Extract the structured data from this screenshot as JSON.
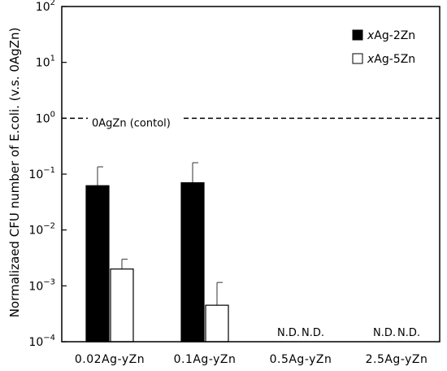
{
  "chart_data": {
    "type": "bar",
    "y_scale": "log",
    "ylim": [
      0.0001,
      100
    ],
    "yticks": [
      {
        "value": 100,
        "base": "10",
        "exp": "2"
      },
      {
        "value": 10,
        "base": "10",
        "exp": "1"
      },
      {
        "value": 1,
        "base": "10",
        "exp": "0"
      },
      {
        "value": 0.1,
        "base": "10",
        "exp": "−1"
      },
      {
        "value": 0.01,
        "base": "10",
        "exp": "−2"
      },
      {
        "value": 0.001,
        "base": "10",
        "exp": "−3"
      },
      {
        "value": 0.0001,
        "base": "10",
        "exp": "−4"
      }
    ],
    "ylabel": "Normalizaed  CFU number of E.coli. (v.s. 0AgZn)",
    "xlabel": "",
    "categories": [
      "0.02Ag-yZn",
      "0.1Ag-yZn",
      "0.5Ag-yZn",
      "2.5Ag-yZn"
    ],
    "series": [
      {
        "name_prefix": "x",
        "name_suffix": "Ag-2Zn",
        "fill": "#000000",
        "values": [
          0.062,
          0.07,
          null,
          null
        ],
        "errors_upper": [
          0.135,
          0.16,
          null,
          null
        ],
        "labels": [
          "",
          "",
          "N.D.",
          "N.D."
        ]
      },
      {
        "name_prefix": "x",
        "name_suffix": "Ag-5Zn",
        "fill": "#ffffff",
        "values": [
          0.002,
          0.00045,
          null,
          null
        ],
        "errors_upper": [
          0.003,
          0.00115,
          null,
          null
        ],
        "labels": [
          "",
          "",
          "N.D.",
          "N.D."
        ]
      }
    ],
    "reference_line": {
      "value": 1,
      "label": "0AgZn (contol)",
      "style": "dashed"
    },
    "legend_position": "top-right",
    "grid": false
  }
}
